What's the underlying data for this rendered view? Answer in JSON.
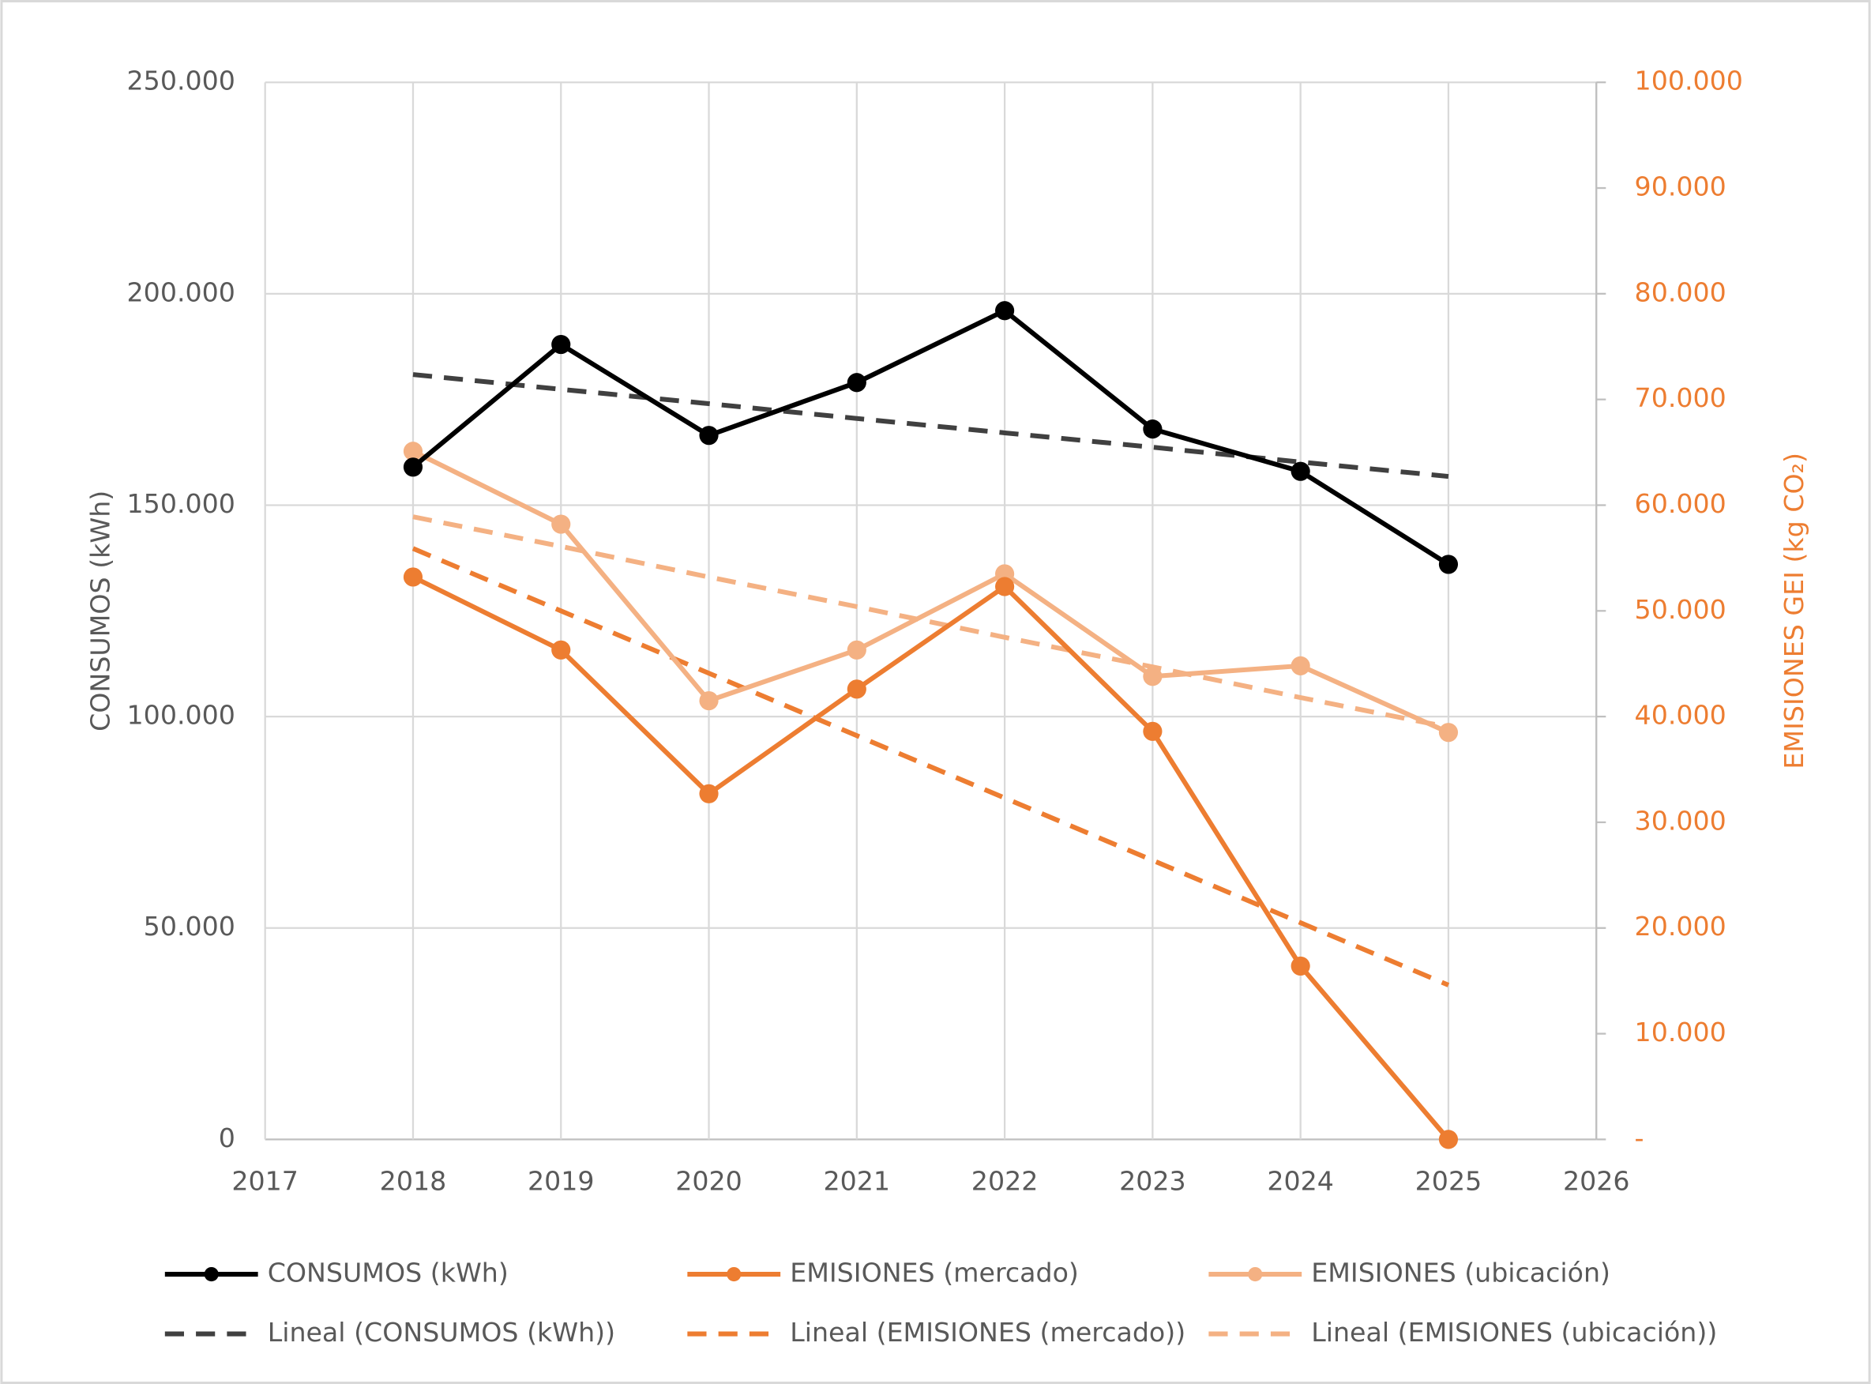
{
  "chart_data": {
    "type": "line",
    "x": [
      2018,
      2019,
      2020,
      2021,
      2022,
      2023,
      2024,
      2025
    ],
    "xlim": [
      2017,
      2026
    ],
    "xticks": [
      2017,
      2018,
      2019,
      2020,
      2021,
      2022,
      2023,
      2024,
      2025,
      2026
    ],
    "ylabel": "CONSUMOS (kWh)",
    "y2label": "EMISIONES GEI (kg CO₂)",
    "ylim": [
      0,
      250000
    ],
    "yticks": [
      0,
      {
        "value": 50000,
        "label": "50.000"
      },
      {
        "value": 100000,
        "label": "100.000"
      },
      {
        "value": 150000,
        "label": "150.000"
      },
      {
        "value": 200000,
        "label": "200.000"
      },
      {
        "value": 250000,
        "label": "250.000"
      }
    ],
    "y2lim": [
      0,
      100000
    ],
    "y2ticks": [
      {
        "value": 0,
        "label": "-"
      },
      {
        "value": 10000,
        "label": "10.000"
      },
      {
        "value": 20000,
        "label": "20.000"
      },
      {
        "value": 30000,
        "label": "30.000"
      },
      {
        "value": 40000,
        "label": "40.000"
      },
      {
        "value": 50000,
        "label": "50.000"
      },
      {
        "value": 60000,
        "label": "60.000"
      },
      {
        "value": 70000,
        "label": "70.000"
      },
      {
        "value": 80000,
        "label": "80.000"
      },
      {
        "value": 90000,
        "label": "90.000"
      },
      {
        "value": 100000,
        "label": "100.000"
      }
    ],
    "grid": true,
    "legend": "bottom",
    "series": [
      {
        "name": "CONSUMOS (kWh)",
        "color": "#000000",
        "style": "solid",
        "markers": true,
        "values": [
          159000,
          188000,
          166500,
          179000,
          196000,
          168000,
          158000,
          136000
        ]
      },
      {
        "name": "EMISIONES (mercado)",
        "color": "#ed7d31",
        "style": "solid",
        "markers": true,
        "axis": "y2",
        "values": [
          53200,
          46300,
          32700,
          42600,
          52300,
          38600,
          16400,
          0
        ]
      },
      {
        "name": "EMISIONES (ubicación)",
        "color": "#f4b183",
        "style": "solid",
        "markers": true,
        "axis": "y2",
        "values": [
          65100,
          58200,
          41500,
          46300,
          53500,
          43800,
          44800,
          38500
        ]
      },
      {
        "name": "Lineal (CONSUMOS (kWh))",
        "color": "#404040",
        "style": "dashed",
        "markers": false,
        "values": [
          180900,
          177400,
          174000,
          170500,
          167100,
          163700,
          160200,
          156800
        ]
      },
      {
        "name": "Lineal (EMISIONES (mercado))",
        "color": "#ed7d31",
        "style": "dashed",
        "markers": false,
        "axis": "y2",
        "values": [
          55900,
          50000,
          44100,
          38200,
          32300,
          26400,
          20500,
          14600
        ]
      },
      {
        "name": "Lineal (EMISIONES (ubicación))",
        "color": "#f4b183",
        "style": "dashed",
        "markers": false,
        "axis": "y2",
        "values": [
          58900,
          56100,
          53200,
          50400,
          47500,
          44700,
          41800,
          39000
        ]
      }
    ]
  }
}
